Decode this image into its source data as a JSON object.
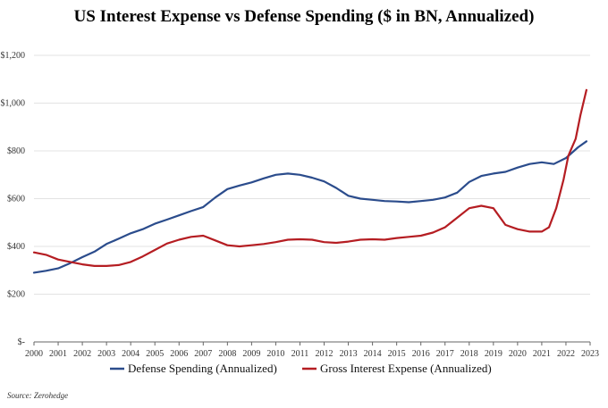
{
  "chart_data": {
    "type": "line",
    "title": "US Interest Expense vs Defense Spending ($ in BN, Annualized)",
    "source": "Source: Zerohedge",
    "xlabel": "",
    "ylabel": "",
    "xlim": [
      2000,
      2023
    ],
    "ylim": [
      0,
      1200
    ],
    "x_ticks": [
      "2000",
      "2001",
      "2002",
      "2003",
      "2004",
      "2005",
      "2006",
      "2007",
      "2008",
      "2009",
      "2010",
      "2011",
      "2012",
      "2013",
      "2014",
      "2015",
      "2016",
      "2017",
      "2018",
      "2019",
      "2020",
      "2021",
      "2022",
      "2023"
    ],
    "y_ticks": [
      "$-",
      "$200",
      "$400",
      "$600",
      "$800",
      "$1,000",
      "$1,200"
    ],
    "grid": true,
    "legend_position": "bottom",
    "series": [
      {
        "name": "Defense Spending (Annualized)",
        "color": "#2b4c8c",
        "x": [
          2000,
          2000.5,
          2001,
          2001.5,
          2002,
          2002.5,
          2003,
          2003.5,
          2004,
          2004.5,
          2005,
          2005.5,
          2006,
          2006.5,
          2007,
          2007.5,
          2008,
          2008.5,
          2009,
          2009.5,
          2010,
          2010.5,
          2011,
          2011.5,
          2012,
          2012.5,
          2013,
          2013.5,
          2014,
          2014.5,
          2015,
          2015.5,
          2016,
          2016.5,
          2017,
          2017.5,
          2018,
          2018.5,
          2019,
          2019.5,
          2020,
          2020.5,
          2021,
          2021.5,
          2022,
          2022.5,
          2022.85
        ],
        "y": [
          290,
          298,
          308,
          330,
          355,
          378,
          410,
          432,
          455,
          472,
          495,
          512,
          530,
          548,
          565,
          605,
          640,
          655,
          668,
          685,
          700,
          705,
          700,
          688,
          672,
          645,
          612,
          600,
          595,
          590,
          588,
          585,
          590,
          595,
          605,
          625,
          670,
          695,
          705,
          712,
          730,
          745,
          752,
          745,
          770,
          815,
          840
        ]
      },
      {
        "name": "Gross Interest Expense (Annualized)",
        "color": "#b51d22",
        "x": [
          2000,
          2000.5,
          2001,
          2001.5,
          2002,
          2002.5,
          2003,
          2003.5,
          2004,
          2004.5,
          2005,
          2005.5,
          2006,
          2006.5,
          2007,
          2007.5,
          2008,
          2008.5,
          2009,
          2009.5,
          2010,
          2010.5,
          2011,
          2011.5,
          2012,
          2012.5,
          2013,
          2013.5,
          2014,
          2014.5,
          2015,
          2015.5,
          2016,
          2016.5,
          2017,
          2017.5,
          2018,
          2018.5,
          2019,
          2019.5,
          2020,
          2020.5,
          2021,
          2021.3,
          2021.6,
          2021.9,
          2022.1,
          2022.4,
          2022.6,
          2022.85
        ],
        "y": [
          375,
          365,
          345,
          335,
          325,
          318,
          318,
          322,
          335,
          358,
          385,
          412,
          428,
          440,
          445,
          425,
          405,
          400,
          405,
          410,
          418,
          428,
          430,
          428,
          418,
          415,
          420,
          428,
          430,
          428,
          435,
          440,
          445,
          458,
          480,
          520,
          560,
          570,
          560,
          490,
          472,
          462,
          462,
          480,
          560,
          680,
          780,
          850,
          950,
          1055
        ]
      }
    ]
  }
}
